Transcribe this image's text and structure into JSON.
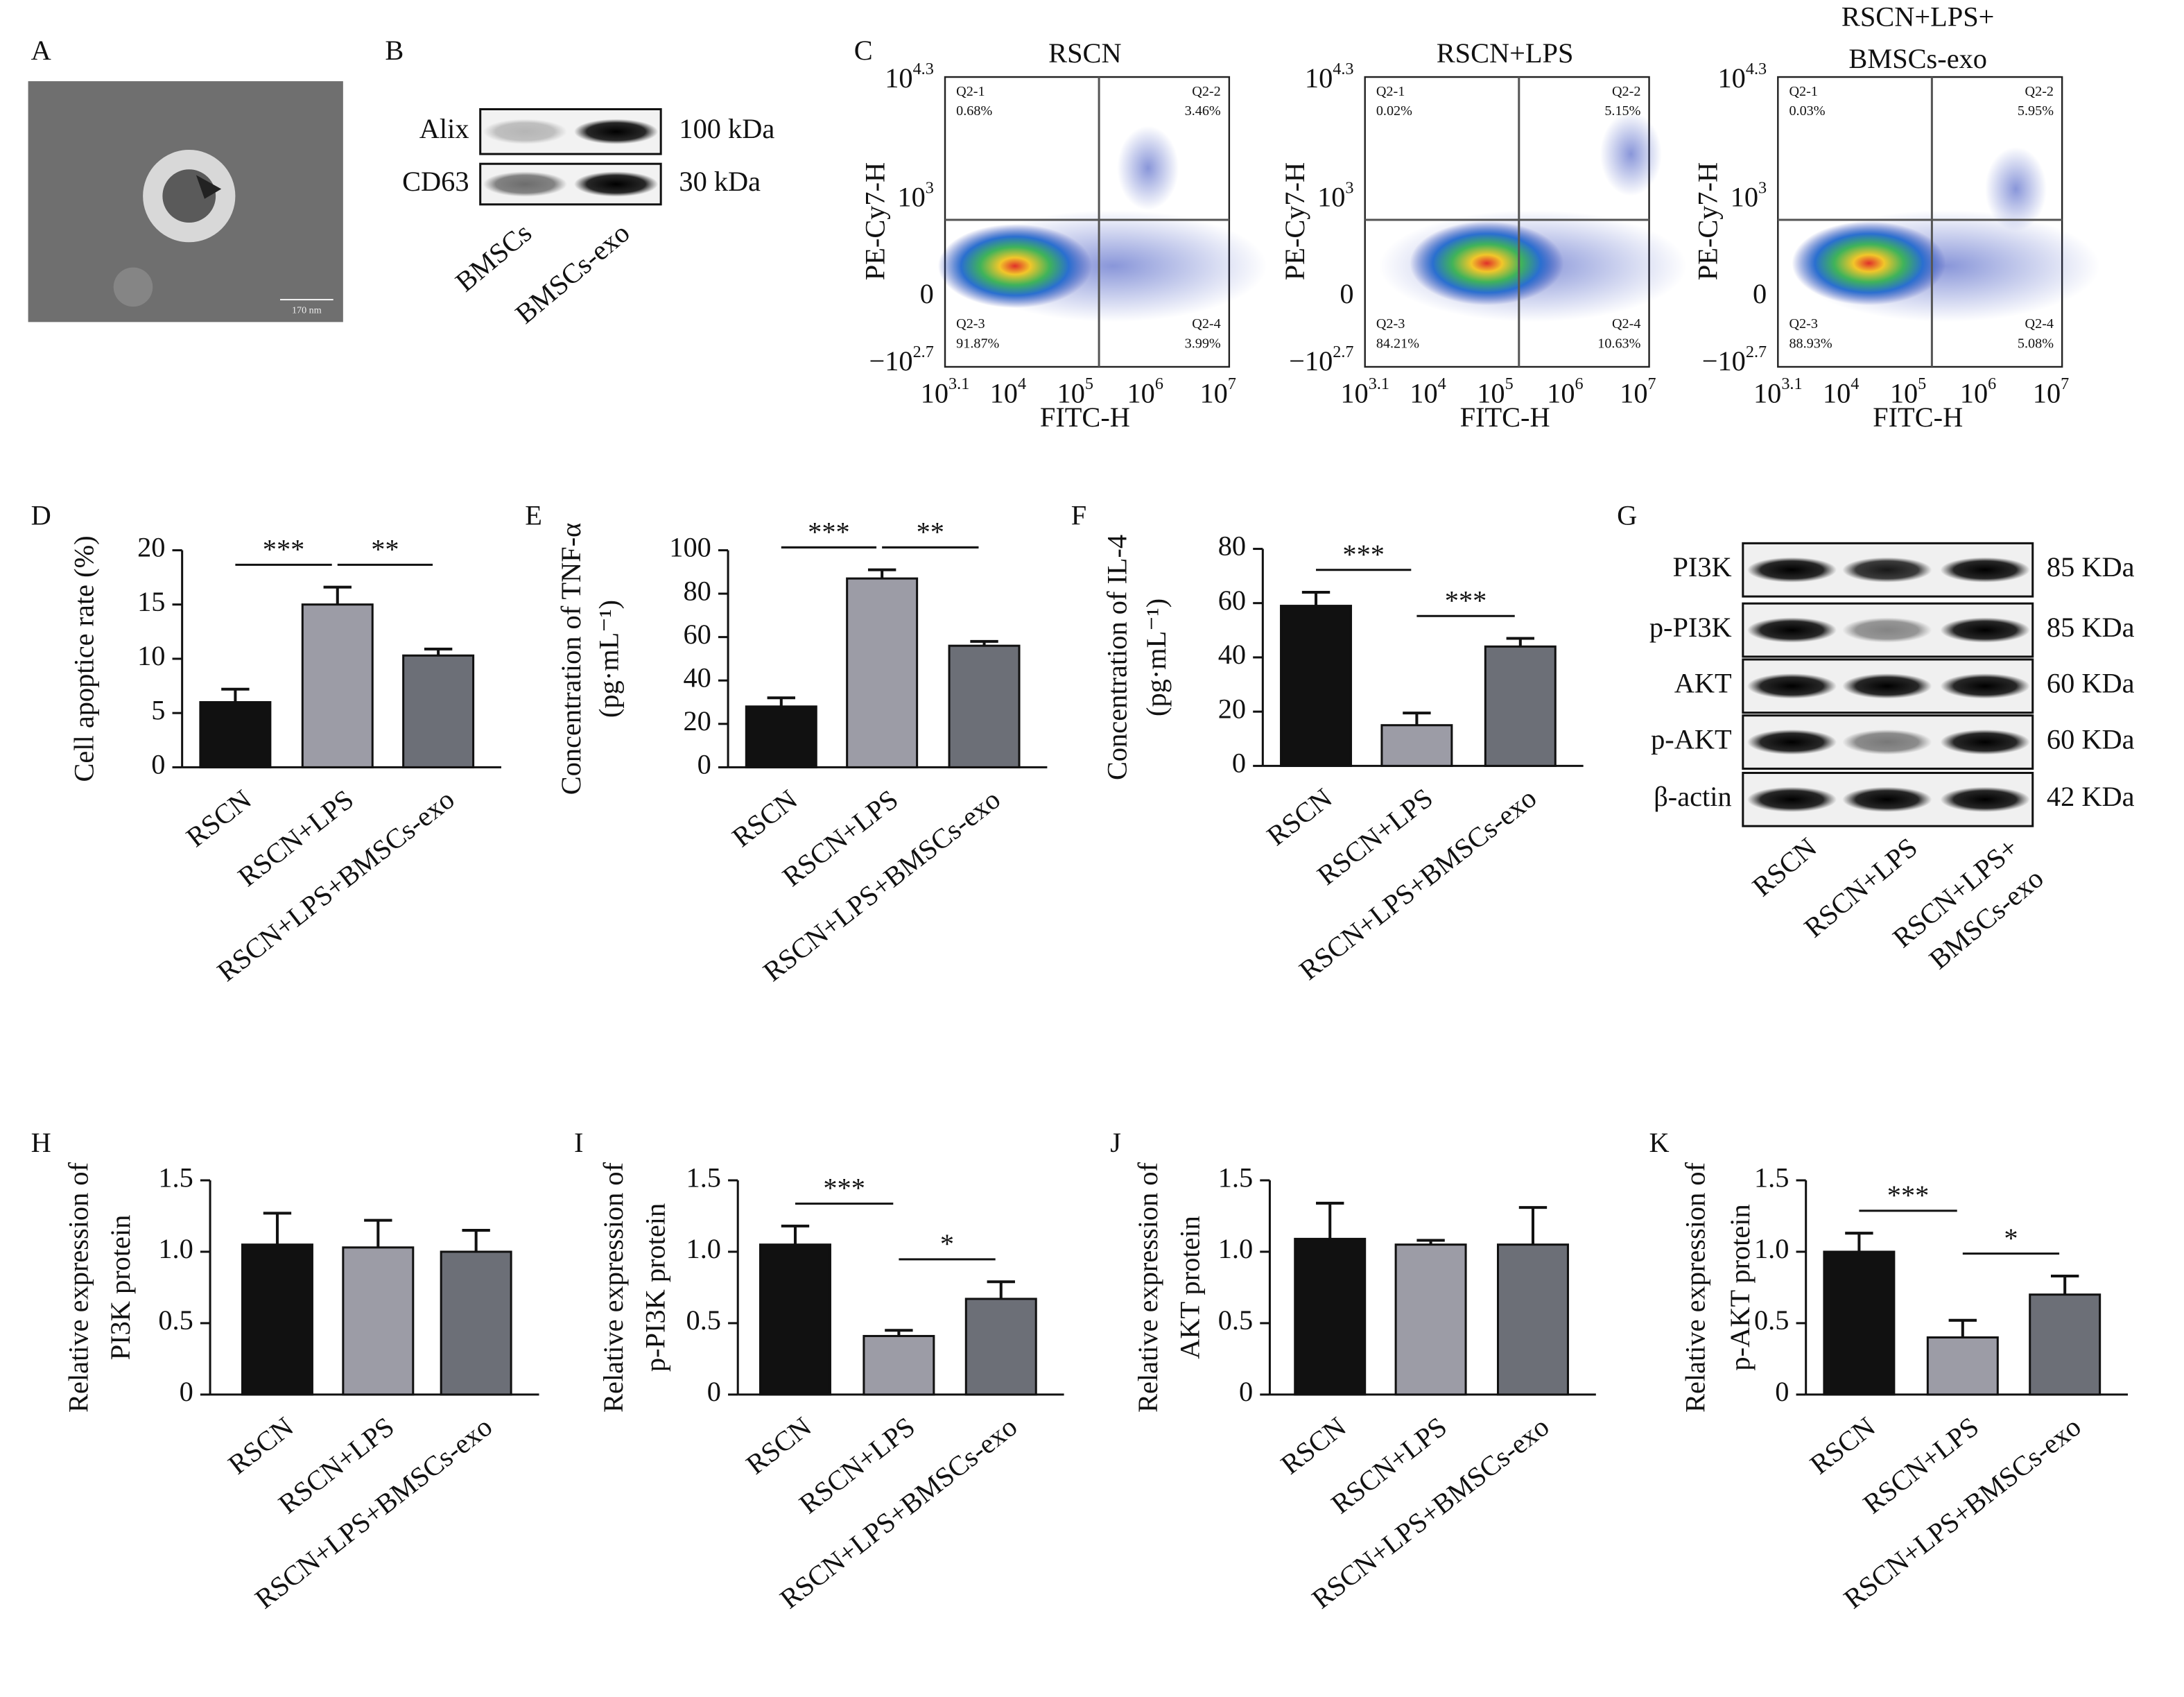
{
  "panel_a": {
    "label": "A",
    "scale_bar": "170 nm"
  },
  "panel_b": {
    "label": "B",
    "rows": [
      {
        "protein": "Alix",
        "size": "100 kDa"
      },
      {
        "protein": "CD63",
        "size": "30 kDa"
      }
    ],
    "lanes": [
      "BMSCs",
      "BMSCs-exo"
    ]
  },
  "panel_c": {
    "label": "C",
    "x_label": "FITC-H",
    "y_label": "PE-Cy7-H",
    "xticks": [
      {
        "base": "10",
        "exp": "3.1"
      },
      {
        "base": "10",
        "exp": "4"
      },
      {
        "base": "10",
        "exp": "5"
      },
      {
        "base": "10",
        "exp": "6"
      },
      {
        "base": "10",
        "exp": "7"
      }
    ],
    "yticks": [
      {
        "base": "10",
        "exp": "4.3"
      },
      {
        "base": "10",
        "exp": "3"
      },
      {
        "base": "0"
      },
      {
        "base": "−10",
        "exp": "2.7"
      }
    ],
    "plots": [
      {
        "title": [
          "RSCN"
        ],
        "quadrants": [
          [
            "Q2-1",
            "0.68%"
          ],
          [
            "Q2-2",
            "3.46%"
          ],
          [
            "Q2-3",
            "91.87%"
          ],
          [
            "Q2-4",
            "3.99%"
          ]
        ]
      },
      {
        "title": [
          "RSCN+LPS"
        ],
        "quadrants": [
          [
            "Q2-1",
            "0.02%"
          ],
          [
            "Q2-2",
            "5.15%"
          ],
          [
            "Q2-3",
            "84.21%"
          ],
          [
            "Q2-4",
            "10.63%"
          ]
        ]
      },
      {
        "title": [
          "RSCN+LPS+",
          "BMSCs-exo"
        ],
        "quadrants": [
          [
            "Q2-1",
            "0.03%"
          ],
          [
            "Q2-2",
            "5.95%"
          ],
          [
            "Q2-3",
            "88.93%"
          ],
          [
            "Q2-4",
            "5.08%"
          ]
        ]
      }
    ]
  },
  "panel_g": {
    "label": "G",
    "rows": [
      {
        "protein": "PI3K",
        "size": "85 KDa"
      },
      {
        "protein": "p-PI3K",
        "size": "85 KDa"
      },
      {
        "protein": "AKT",
        "size": "60 KDa"
      },
      {
        "protein": "p-AKT",
        "size": "60 KDa"
      },
      {
        "protein": "β-actin",
        "size": "42 KDa"
      }
    ],
    "lanes": [
      [
        "RSCN"
      ],
      [
        "RSCN+LPS"
      ],
      [
        "RSCN+LPS+",
        "BMSCs-exo"
      ]
    ]
  },
  "chart_data": [
    {
      "type": "bar",
      "label": "D",
      "y_label": [
        "Cell apoptice rate (%)"
      ],
      "categories": [
        "RSCN",
        "RSCN+LPS",
        "RSCN+LPS+BMSCs-exo"
      ],
      "values": [
        6.0,
        15.0,
        10.3
      ],
      "errors": [
        1.2,
        1.6,
        0.6
      ],
      "colors": [
        "#111111",
        "#9c9ca6",
        "#6c6f77"
      ],
      "ylim": [
        0,
        20
      ],
      "yticks": [
        0,
        5,
        10,
        15,
        20
      ],
      "significance": [
        {
          "from": 0,
          "to": 1,
          "label": "***"
        },
        {
          "from": 1,
          "to": 2,
          "label": "**"
        }
      ]
    },
    {
      "type": "bar",
      "label": "E",
      "y_label": [
        "Concentration of TNF-α",
        "(pg·mL⁻¹)"
      ],
      "categories": [
        "RSCN",
        "RSCN+LPS",
        "RSCN+LPS+BMSCs-exo"
      ],
      "values": [
        28,
        87,
        56
      ],
      "errors": [
        4,
        4,
        2
      ],
      "colors": [
        "#111111",
        "#9c9ca6",
        "#6c6f77"
      ],
      "ylim": [
        0,
        100
      ],
      "yticks": [
        0,
        20,
        40,
        60,
        80,
        100
      ],
      "significance": [
        {
          "from": 0,
          "to": 1,
          "label": "***"
        },
        {
          "from": 1,
          "to": 2,
          "label": "**"
        }
      ]
    },
    {
      "type": "bar",
      "label": "F",
      "y_label": [
        "Concentration of IL-4",
        "(pg·mL⁻¹)"
      ],
      "categories": [
        "RSCN",
        "RSCN+LPS",
        "RSCN+LPS+BMSCs-exo"
      ],
      "values": [
        59,
        15,
        44
      ],
      "errors": [
        5,
        4.5,
        3
      ],
      "colors": [
        "#111111",
        "#9c9ca6",
        "#6c6f77"
      ],
      "ylim": [
        0,
        80
      ],
      "yticks": [
        0,
        20,
        40,
        60,
        80
      ],
      "significance": [
        {
          "from": 0,
          "to": 1,
          "label": "***"
        },
        {
          "from": 1,
          "to": 2,
          "label": "***"
        }
      ]
    },
    {
      "type": "bar",
      "label": "H",
      "y_label": [
        "Relative expression of",
        "PI3K protein"
      ],
      "categories": [
        "RSCN",
        "RSCN+LPS",
        "RSCN+LPS+BMSCs-exo"
      ],
      "values": [
        1.05,
        1.03,
        1.0
      ],
      "errors": [
        0.22,
        0.19,
        0.15
      ],
      "colors": [
        "#111111",
        "#9c9ca6",
        "#6c6f77"
      ],
      "ylim": [
        0,
        1.5
      ],
      "yticks": [
        0,
        0.5,
        {
          "value": 1,
          "label": "1.0"
        },
        1.5
      ],
      "significance": []
    },
    {
      "type": "bar",
      "label": "I",
      "y_label": [
        "Relative expression of",
        "p-PI3K protein"
      ],
      "categories": [
        "RSCN",
        "RSCN+LPS",
        "RSCN+LPS+BMSCs-exo"
      ],
      "values": [
        1.05,
        0.41,
        0.67
      ],
      "errors": [
        0.13,
        0.04,
        0.12
      ],
      "colors": [
        "#111111",
        "#9c9ca6",
        "#6c6f77"
      ],
      "ylim": [
        0,
        1.5
      ],
      "yticks": [
        0,
        0.5,
        {
          "value": 1,
          "label": "1.0"
        },
        1.5
      ],
      "significance": [
        {
          "from": 0,
          "to": 1,
          "label": "***"
        },
        {
          "from": 1,
          "to": 2,
          "label": "*"
        }
      ]
    },
    {
      "type": "bar",
      "label": "J",
      "y_label": [
        "Relative expression of",
        "AKT protein"
      ],
      "categories": [
        "RSCN",
        "RSCN+LPS",
        "RSCN+LPS+BMSCs-exo"
      ],
      "values": [
        1.09,
        1.05,
        1.05
      ],
      "errors": [
        0.25,
        0.03,
        0.26
      ],
      "colors": [
        "#111111",
        "#9c9ca6",
        "#6c6f77"
      ],
      "ylim": [
        0,
        1.5
      ],
      "yticks": [
        0,
        0.5,
        {
          "value": 1,
          "label": "1.0"
        },
        1.5
      ],
      "significance": []
    },
    {
      "type": "bar",
      "label": "K",
      "y_label": [
        "Relative expression of",
        "p-AKT protein"
      ],
      "categories": [
        "RSCN",
        "RSCN+LPS",
        "RSCN+LPS+BMSCs-exo"
      ],
      "values": [
        1.0,
        0.4,
        0.7
      ],
      "errors": [
        0.13,
        0.12,
        0.13
      ],
      "colors": [
        "#111111",
        "#9c9ca6",
        "#6c6f77"
      ],
      "ylim": [
        0,
        1.5
      ],
      "yticks": [
        0,
        0.5,
        {
          "value": 1,
          "label": "1.0"
        },
        1.5
      ],
      "significance": [
        {
          "from": 0,
          "to": 1,
          "label": "***"
        },
        {
          "from": 1,
          "to": 2,
          "label": "*"
        }
      ]
    }
  ]
}
